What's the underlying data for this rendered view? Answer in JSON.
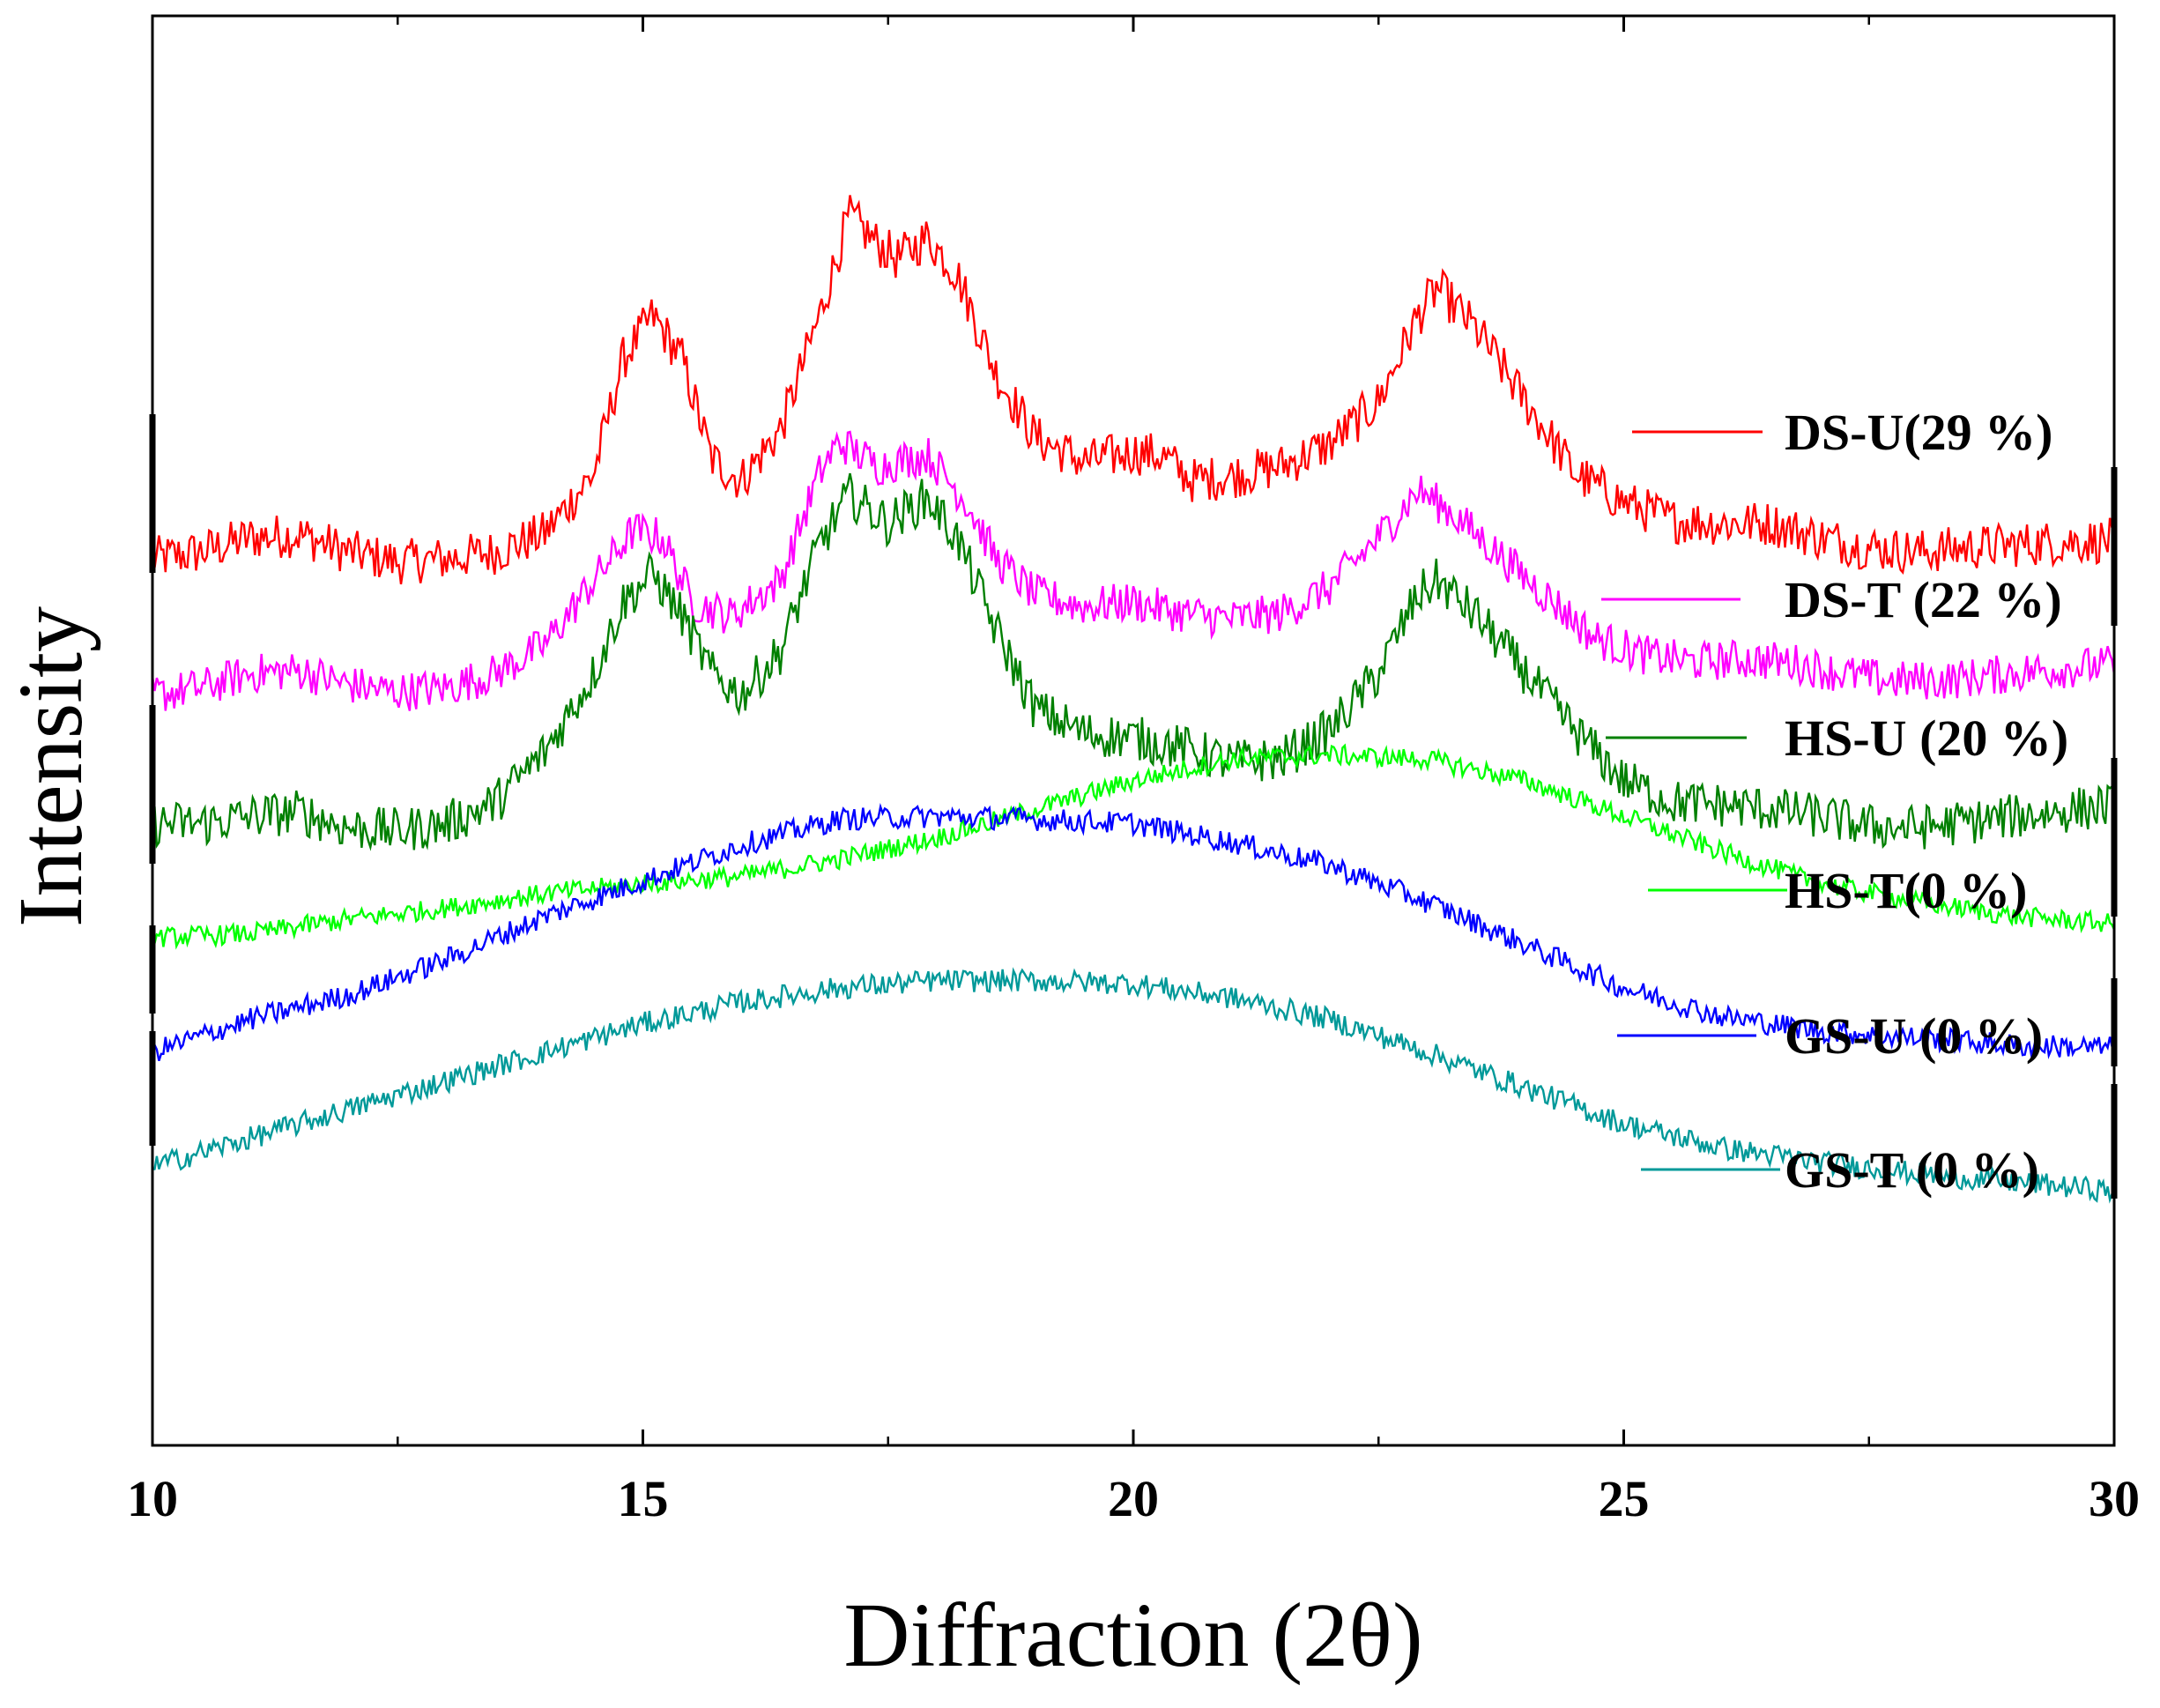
{
  "chart_data": {
    "type": "line",
    "xlabel": "Diffraction (2θ)",
    "ylabel": "Intensity",
    "xlim": [
      10,
      30
    ],
    "ylim": [
      0,
      100
    ],
    "xticks": [
      10,
      15,
      20,
      25,
      30
    ],
    "xtick_labels": [
      "10",
      "15",
      "20",
      "25",
      "30"
    ],
    "grid": false,
    "legend_position": "right",
    "series": [
      {
        "name": "DS-U(29 %)",
        "color": "#ff0000",
        "points": [
          [
            10,
            62
          ],
          [
            10.5,
            62.5
          ],
          [
            11,
            63.5
          ],
          [
            11.5,
            63.7
          ],
          [
            12,
            62.5
          ],
          [
            12.5,
            61.8
          ],
          [
            13,
            62
          ],
          [
            13.5,
            62.5
          ],
          [
            14,
            63.8
          ],
          [
            14.5,
            68
          ],
          [
            14.8,
            76
          ],
          [
            15.1,
            79
          ],
          [
            15.4,
            76
          ],
          [
            15.7,
            69
          ],
          [
            16,
            67.5
          ],
          [
            16.4,
            71
          ],
          [
            16.8,
            79
          ],
          [
            17.1,
            86
          ],
          [
            17.4,
            84
          ],
          [
            17.6,
            83
          ],
          [
            17.9,
            84.5
          ],
          [
            18.2,
            82
          ],
          [
            18.6,
            75
          ],
          [
            19,
            70.5
          ],
          [
            19.5,
            68.8
          ],
          [
            20,
            69.5
          ],
          [
            20.3,
            69.2
          ],
          [
            20.6,
            67.5
          ],
          [
            21,
            67.8
          ],
          [
            21.5,
            68.5
          ],
          [
            22,
            70
          ],
          [
            22.5,
            73
          ],
          [
            22.9,
            79
          ],
          [
            23.1,
            81
          ],
          [
            23.5,
            78
          ],
          [
            24,
            73
          ],
          [
            24.5,
            68
          ],
          [
            25,
            66
          ],
          [
            25.5,
            64.7
          ],
          [
            26,
            64.5
          ],
          [
            26.5,
            64.5
          ],
          [
            27,
            63.5
          ],
          [
            27.5,
            62.8
          ],
          [
            28,
            62.5
          ],
          [
            28.5,
            62.8
          ],
          [
            29,
            63
          ],
          [
            29.5,
            63.2
          ],
          [
            30,
            63.3
          ]
        ]
      },
      {
        "name": "DS-T (22 %)",
        "color": "#ff00ff",
        "points": [
          [
            10,
            52.5
          ],
          [
            10.5,
            53
          ],
          [
            11,
            54
          ],
          [
            11.5,
            54.2
          ],
          [
            12,
            53.2
          ],
          [
            12.5,
            52.7
          ],
          [
            13,
            53
          ],
          [
            13.5,
            54
          ],
          [
            14,
            56
          ],
          [
            14.5,
            60.5
          ],
          [
            14.9,
            64
          ],
          [
            15.2,
            63.5
          ],
          [
            15.5,
            59
          ],
          [
            15.9,
            58
          ],
          [
            16.4,
            60.5
          ],
          [
            16.8,
            68
          ],
          [
            17,
            70.2
          ],
          [
            17.4,
            68.5
          ],
          [
            17.9,
            69.3
          ],
          [
            18.3,
            66
          ],
          [
            18.6,
            62
          ],
          [
            19,
            59.5
          ],
          [
            19.5,
            58.7
          ],
          [
            20,
            59
          ],
          [
            20.5,
            58.2
          ],
          [
            21,
            57.8
          ],
          [
            21.5,
            58.2
          ],
          [
            22,
            60
          ],
          [
            22.5,
            63.5
          ],
          [
            22.9,
            66.8
          ],
          [
            23.2,
            65.5
          ],
          [
            23.7,
            62.5
          ],
          [
            24.2,
            59.5
          ],
          [
            24.7,
            56.5
          ],
          [
            25.2,
            55.3
          ],
          [
            25.7,
            54.8
          ],
          [
            26.2,
            55
          ],
          [
            26.7,
            54.8
          ],
          [
            27.2,
            54
          ],
          [
            27.7,
            53.5
          ],
          [
            28.2,
            53.5
          ],
          [
            28.7,
            53.8
          ],
          [
            29.2,
            54.2
          ],
          [
            30,
            54.6
          ]
        ]
      },
      {
        "name": "HS-U (20 %)",
        "color": "#008000",
        "points": [
          [
            10,
            43.5
          ],
          [
            10.5,
            43.5
          ],
          [
            11,
            44
          ],
          [
            11.5,
            44.3
          ],
          [
            12,
            43.2
          ],
          [
            12.5,
            43
          ],
          [
            13,
            43.5
          ],
          [
            13.5,
            45
          ],
          [
            14,
            48.5
          ],
          [
            14.5,
            54
          ],
          [
            14.8,
            59
          ],
          [
            15.1,
            61
          ],
          [
            15.4,
            58
          ],
          [
            15.7,
            54
          ],
          [
            16,
            52.5
          ],
          [
            16.4,
            55.5
          ],
          [
            16.8,
            63
          ],
          [
            17.1,
            66.5
          ],
          [
            17.5,
            64.5
          ],
          [
            17.9,
            66.3
          ],
          [
            18.2,
            63.5
          ],
          [
            18.6,
            57
          ],
          [
            19,
            51.5
          ],
          [
            19.5,
            49.8
          ],
          [
            20,
            49.5
          ],
          [
            20.5,
            48.8
          ],
          [
            21,
            47.8
          ],
          [
            21.5,
            48
          ],
          [
            22,
            50
          ],
          [
            22.5,
            54
          ],
          [
            22.9,
            59.5
          ],
          [
            23.1,
            60.5
          ],
          [
            23.5,
            58
          ],
          [
            24,
            54
          ],
          [
            24.5,
            50
          ],
          [
            25,
            46.5
          ],
          [
            25.5,
            45
          ],
          [
            26,
            44.8
          ],
          [
            26.5,
            44.5
          ],
          [
            27,
            44
          ],
          [
            27.5,
            43.3
          ],
          [
            28,
            43.2
          ],
          [
            28.5,
            43.6
          ],
          [
            29,
            44
          ],
          [
            29.5,
            44.4
          ],
          [
            30,
            44.8
          ]
        ]
      },
      {
        "name": "HS-T(0 %)",
        "color": "#00ff00",
        "points": [
          [
            10,
            35.5
          ],
          [
            11,
            35.8
          ],
          [
            12,
            36.8
          ],
          [
            13,
            37.6
          ],
          [
            14,
            38.6
          ],
          [
            15,
            39.3
          ],
          [
            16,
            39.8
          ],
          [
            17,
            41
          ],
          [
            18,
            42.5
          ],
          [
            19,
            44.5
          ],
          [
            20,
            46.5
          ],
          [
            21,
            48
          ],
          [
            22,
            48.3
          ],
          [
            23,
            48
          ],
          [
            24,
            46.5
          ],
          [
            25,
            44
          ],
          [
            26,
            41.5
          ],
          [
            27,
            39.3
          ],
          [
            28,
            38
          ],
          [
            29,
            37
          ],
          [
            30,
            36.5
          ]
        ]
      },
      {
        "name": "GS-U (0 %)",
        "color": "#0000ff",
        "points": [
          [
            10,
            27.5
          ],
          [
            11,
            29.8
          ],
          [
            12,
            31.5
          ],
          [
            13,
            34
          ],
          [
            14,
            37
          ],
          [
            15,
            39.5
          ],
          [
            16,
            42
          ],
          [
            17,
            43.8
          ],
          [
            18,
            44
          ],
          [
            19,
            43.8
          ],
          [
            20,
            43.5
          ],
          [
            21,
            42.2
          ],
          [
            22,
            40.6
          ],
          [
            23,
            38
          ],
          [
            24,
            35
          ],
          [
            25,
            32
          ],
          [
            26,
            30
          ],
          [
            27,
            29
          ],
          [
            28,
            28.5
          ],
          [
            29,
            28
          ],
          [
            30,
            27.8
          ]
        ]
      },
      {
        "name": "GS-T (0 %)",
        "color": "#009999",
        "points": [
          [
            10,
            19.5
          ],
          [
            11,
            21.5
          ],
          [
            12,
            23.5
          ],
          [
            13,
            25.5
          ],
          [
            14,
            27.5
          ],
          [
            15,
            29.5
          ],
          [
            16,
            31
          ],
          [
            17,
            32
          ],
          [
            18,
            32.5
          ],
          [
            19,
            32.5
          ],
          [
            20,
            32.3
          ],
          [
            21,
            31.3
          ],
          [
            22,
            29.8
          ],
          [
            23,
            27.5
          ],
          [
            24,
            25
          ],
          [
            25,
            22.5
          ],
          [
            26,
            20.8
          ],
          [
            27,
            19.8
          ],
          [
            28,
            19
          ],
          [
            29,
            18.4
          ],
          [
            30,
            17.8
          ]
        ]
      }
    ]
  }
}
